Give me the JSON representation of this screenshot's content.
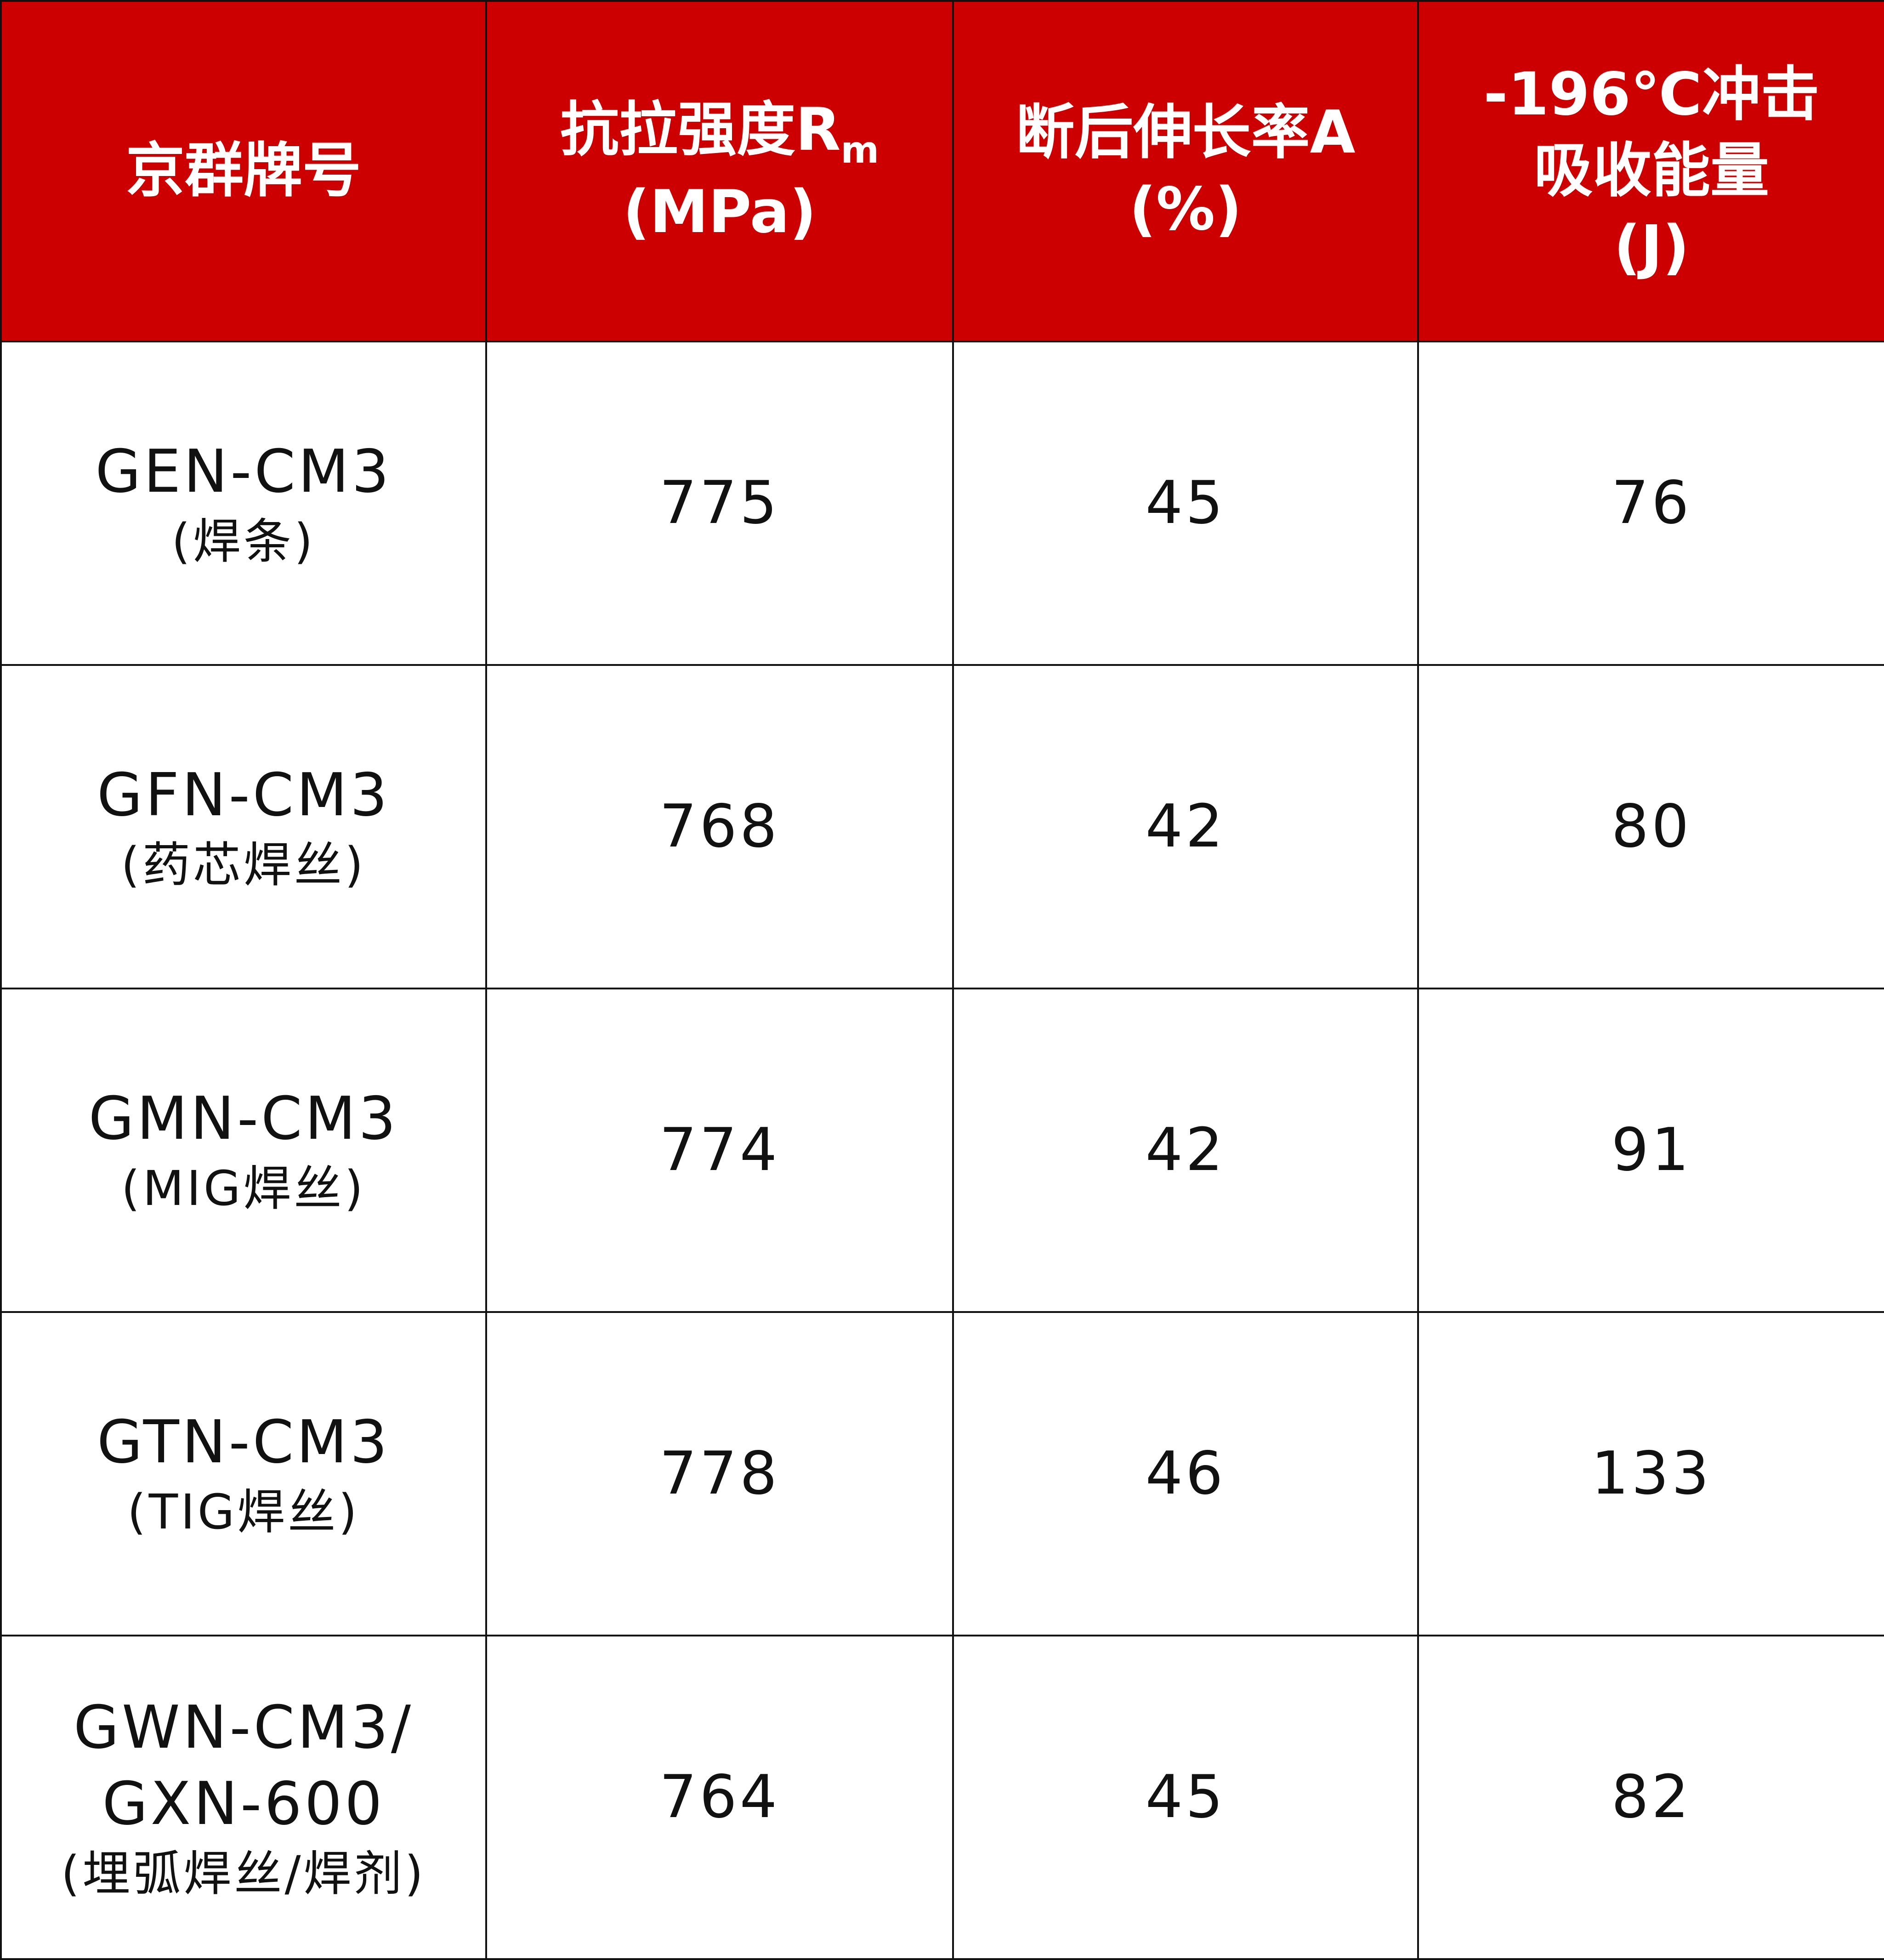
{
  "header": {
    "col1": "京群牌号",
    "col2_line1": "抗拉强度R",
    "col2_sub": "m",
    "col2_line2": "(MPa)",
    "col3_line1": "断后伸长率A",
    "col3_line2": "(%)",
    "col4_line1": "-196℃冲击",
    "col4_line2": "吸收能量",
    "col4_line3": "(J)"
  },
  "rows": [
    {
      "grade": [
        "GEN-CM3",
        "(焊条)"
      ],
      "tensile": "775",
      "elongation": "45",
      "impact": "76"
    },
    {
      "grade": [
        "GFN-CM3",
        "(药芯焊丝)"
      ],
      "tensile": "768",
      "elongation": "42",
      "impact": "80"
    },
    {
      "grade": [
        "GMN-CM3",
        "(MIG焊丝)"
      ],
      "tensile": "774",
      "elongation": "42",
      "impact": "91"
    },
    {
      "grade": [
        "GTN-CM3",
        "(TIG焊丝)"
      ],
      "tensile": "778",
      "elongation": "46",
      "impact": "133"
    },
    {
      "grade": [
        "GWN-CM3/",
        "GXN-600",
        "(埋弧焊丝/焊剂)"
      ],
      "tensile": "764",
      "elongation": "45",
      "impact": "82"
    }
  ],
  "colors": {
    "header_bg": "#cc0000",
    "header_text": "#ffffff",
    "border": "#111111"
  }
}
